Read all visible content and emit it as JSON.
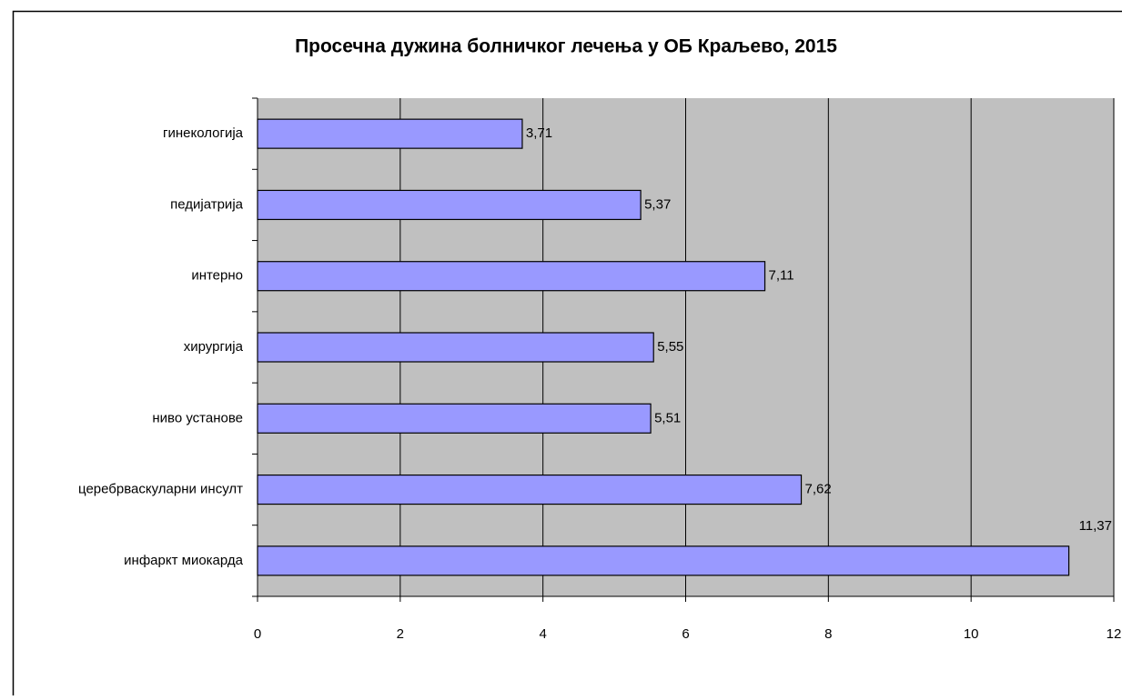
{
  "chart_data": {
    "type": "bar",
    "orientation": "horizontal",
    "title": "Просечна дужина болничког лечења у ОБ Краљево, 2015",
    "categories": [
      "гинекологија",
      "педијатрија",
      "интерно",
      "хирургија",
      "ниво установе",
      "церебрваскуларни инсулт",
      "инфаркт миокарда"
    ],
    "values": [
      3.71,
      5.37,
      7.11,
      5.55,
      5.51,
      7.62,
      11.37
    ],
    "value_labels": [
      "3,71",
      "5,37",
      "7,11",
      "5,55",
      "5,51",
      "7,62",
      "11,37"
    ],
    "color": "#9999ff",
    "xlim": [
      0,
      12
    ],
    "xticks": [
      0,
      2,
      4,
      6,
      8,
      10,
      12
    ],
    "grid": true
  }
}
